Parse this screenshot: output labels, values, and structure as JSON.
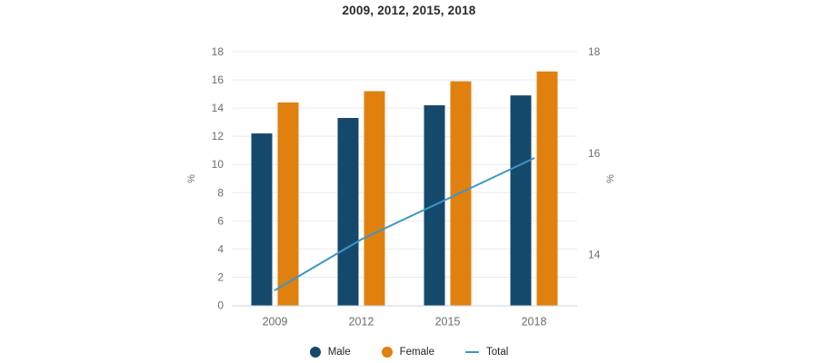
{
  "title": "2009, 2012, 2015, 2018",
  "chart_data": {
    "type": "bar+line combo",
    "categories": [
      "2009",
      "2012",
      "2015",
      "2018"
    ],
    "series": [
      {
        "name": "Male",
        "type": "bar",
        "axis": "left",
        "color": "#15496B",
        "values": [
          12.2,
          13.3,
          14.2,
          14.9
        ]
      },
      {
        "name": "Female",
        "type": "bar",
        "axis": "left",
        "color": "#DF800F",
        "values": [
          14.4,
          15.2,
          15.9,
          16.6
        ]
      },
      {
        "name": "Total",
        "type": "line",
        "axis": "right",
        "color": "#3D96C9",
        "values": [
          13.3,
          14.3,
          15.1,
          15.9
        ]
      }
    ],
    "left_axis": {
      "label": "%",
      "min": 0,
      "max": 18,
      "ticks": [
        0,
        2,
        4,
        6,
        8,
        10,
        12,
        14,
        16,
        18
      ]
    },
    "right_axis": {
      "label": "%",
      "min": 13,
      "max": 18,
      "ticks": [
        14,
        16,
        18
      ]
    },
    "grid": true,
    "legend_position": "bottom",
    "colors": {
      "gridline": "#ebebeb",
      "axis_line": "#ccd6e0",
      "tick_text": "#6e6e6e",
      "axis_title_text": "#6e6e6e"
    }
  },
  "legend": {
    "items": [
      {
        "label": "Male"
      },
      {
        "label": "Female"
      },
      {
        "label": "Total"
      }
    ]
  }
}
